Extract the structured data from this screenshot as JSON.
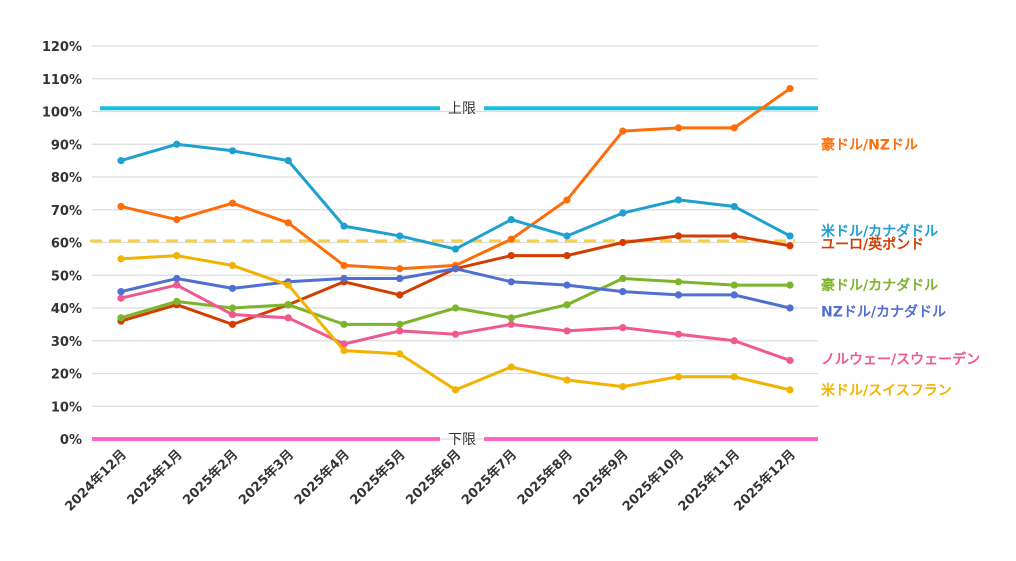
{
  "chart_data": {
    "type": "line",
    "title": "",
    "xlabel": "",
    "ylabel": "",
    "ylim": [
      0,
      120
    ],
    "y_ticks": [
      "0%",
      "10%",
      "20%",
      "30%",
      "40%",
      "50%",
      "60%",
      "70%",
      "80%",
      "90%",
      "100%",
      "110%",
      "120%"
    ],
    "y_tick_values": [
      0,
      10,
      20,
      30,
      40,
      50,
      60,
      70,
      80,
      90,
      100,
      110,
      120
    ],
    "grid": true,
    "legend_placement": "right (inline labels at line ends)",
    "categories": [
      "2024年12月",
      "2025年1月",
      "2025年2月",
      "2025年3月",
      "2025年4月",
      "2025年5月",
      "2025年6月",
      "2025年7月",
      "2025年8月",
      "2025年9月",
      "2025年10月",
      "2025年11月",
      "2025年12月"
    ],
    "series": [
      {
        "name": "豪ドル/NZドル",
        "color": "#FF6D0A",
        "values": [
          71,
          67,
          72,
          66,
          53,
          52,
          53,
          61,
          73,
          94,
          95,
          95,
          107
        ]
      },
      {
        "name": "米ドル/カナダドル",
        "color": "#1FA0D0",
        "values": [
          85,
          90,
          88,
          85,
          65,
          62,
          58,
          67,
          62,
          69,
          73,
          71,
          62
        ]
      },
      {
        "name": "ユーロ/英ポンド",
        "color": "#D43D00",
        "values": [
          36,
          41,
          35,
          41,
          48,
          44,
          52,
          56,
          56,
          60,
          62,
          62,
          59
        ]
      },
      {
        "name": "豪ドル/カナダドル",
        "color": "#7CB52A",
        "values": [
          37,
          42,
          40,
          41,
          35,
          35,
          40,
          37,
          41,
          49,
          48,
          47,
          47
        ]
      },
      {
        "name": "NZドル/カナダドル",
        "color": "#4F6FD2",
        "values": [
          45,
          49,
          46,
          48,
          49,
          49,
          52,
          48,
          47,
          45,
          44,
          44,
          40
        ]
      },
      {
        "name": "ノルウェー/スウェーデン",
        "color": "#F0588F",
        "values": [
          43,
          47,
          38,
          37,
          29,
          33,
          32,
          35,
          33,
          34,
          32,
          30,
          24
        ]
      },
      {
        "name": "米ドル/スイスフラン",
        "color": "#F2B300",
        "values": [
          55,
          56,
          53,
          47,
          27,
          26,
          15,
          22,
          18,
          16,
          19,
          19,
          15
        ]
      }
    ],
    "reference_lines": [
      {
        "label": "上限",
        "value": 101,
        "color": "#1BC0E0",
        "style": "solid"
      },
      {
        "label": "下限",
        "value": 0,
        "color": "#FF66C4",
        "style": "solid"
      },
      {
        "label": "",
        "value": 60.5,
        "color": "#F7D04A",
        "style": "dashed"
      }
    ],
    "legend_label_values": [
      90,
      63.5,
      59.5,
      47,
      39,
      24.5,
      15
    ]
  }
}
